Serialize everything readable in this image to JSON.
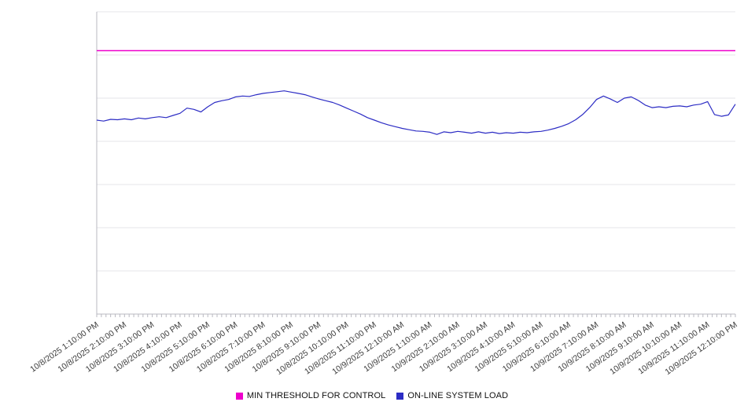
{
  "chart_data": {
    "type": "line",
    "title": "",
    "xlabel": "",
    "ylabel": "",
    "y_tick_labels_visible": false,
    "ylim": [
      0,
      700
    ],
    "grid_step": 100,
    "grid": true,
    "legend_position": "bottom-center",
    "x_minor_tick_minutes": 10,
    "x_labels": [
      "10/8/2025 1:10:00 PM",
      "10/8/2025 2:10:00 PM",
      "10/8/2025 3:10:00 PM",
      "10/8/2025 4:10:00 PM",
      "10/8/2025 5:10:00 PM",
      "10/8/2025 6:10:00 PM",
      "10/8/2025 7:10:00 PM",
      "10/8/2025 8:10:00 PM",
      "10/8/2025 9:10:00 PM",
      "10/8/2025 10:10:00 PM",
      "10/8/2025 11:10:00 PM",
      "10/9/2025 12:10:00 AM",
      "10/9/2025 1:10:00 AM",
      "10/9/2025 2:10:00 AM",
      "10/9/2025 3:10:00 AM",
      "10/9/2025 4:10:00 AM",
      "10/9/2025 5:10:00 AM",
      "10/9/2025 6:10:00 AM",
      "10/9/2025 7:10:00 AM",
      "10/9/2025 8:10:00 AM",
      "10/9/2025 9:10:00 AM",
      "10/9/2025 10:10:00 AM",
      "10/9/2025 11:10:00 AM",
      "10/9/2025 12:10:00 PM"
    ],
    "series": [
      {
        "name": "MIN THRESHOLD FOR CONTROL",
        "type": "threshold",
        "color": "#ee00cc",
        "value": 610
      },
      {
        "name": "ON-LINE SYSTEM LOAD",
        "type": "line",
        "color": "#2c2cc4",
        "interval_minutes": 15,
        "values": [
          449,
          447,
          451,
          450,
          452,
          450,
          454,
          452,
          455,
          457,
          455,
          460,
          465,
          477,
          474,
          468,
          480,
          490,
          494,
          497,
          503,
          505,
          504,
          508,
          511,
          513,
          515,
          517,
          514,
          511,
          508,
          503,
          498,
          494,
          490,
          484,
          477,
          470,
          463,
          455,
          449,
          443,
          438,
          434,
          430,
          427,
          424,
          423,
          421,
          416,
          422,
          420,
          423,
          421,
          419,
          422,
          419,
          421,
          418,
          420,
          419,
          421,
          420,
          422,
          423,
          426,
          430,
          435,
          441,
          450,
          462,
          478,
          497,
          505,
          498,
          490,
          500,
          503,
          495,
          484,
          478,
          480,
          478,
          481,
          482,
          480,
          484,
          486,
          492,
          462,
          458,
          461,
          486
        ]
      }
    ]
  }
}
